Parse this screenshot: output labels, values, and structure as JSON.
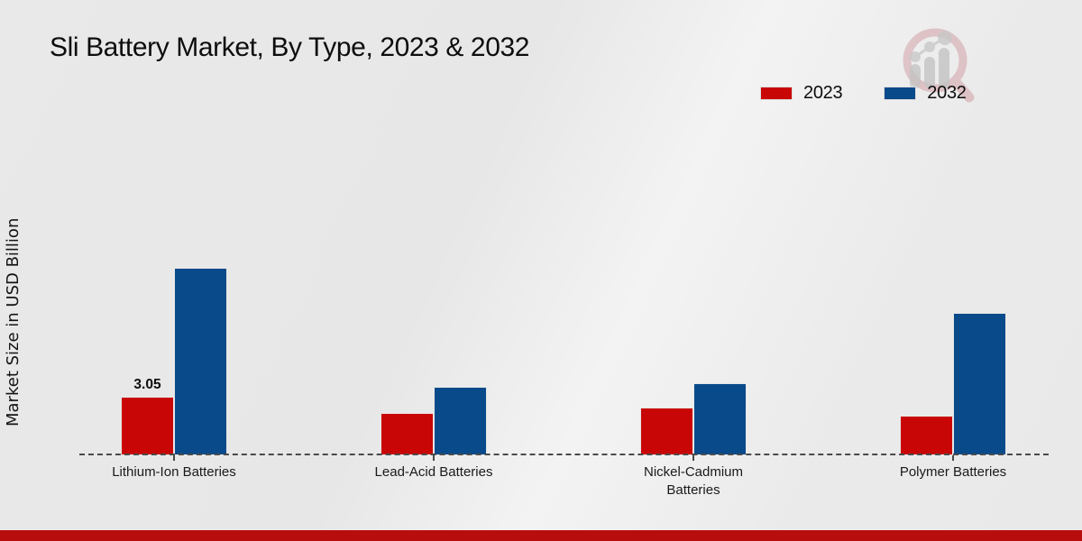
{
  "chart_data": {
    "type": "bar",
    "title": "Sli Battery Market, By Type, 2023 & 2032",
    "ylabel": "Market Size in USD Billion",
    "xlabel": "",
    "categories": [
      "Lithium-Ion Batteries",
      "Lead-Acid Batteries",
      "Nickel-Cadmium Batteries",
      "Polymer Batteries"
    ],
    "series": [
      {
        "name": "2023",
        "color": "#c90606",
        "values": [
          3.05,
          2.2,
          2.5,
          2.05
        ],
        "data_labels": [
          "3.05",
          "",
          "",
          ""
        ]
      },
      {
        "name": "2032",
        "color": "#094a8b",
        "values": [
          9.75,
          3.55,
          3.75,
          7.4
        ],
        "data_labels": [
          "",
          "",
          "",
          ""
        ]
      }
    ],
    "ylim": [
      0,
      10.5
    ],
    "grid": false,
    "legend_position": "top-right",
    "baseline_style": "dashed"
  },
  "legend": [
    {
      "label": "2023",
      "color": "#c90606"
    },
    {
      "label": "2032",
      "color": "#094a8b"
    }
  ],
  "footer": {
    "color": "#b80d0d"
  },
  "icons": {
    "brand_logo": "magnifier-bar-chart-watermark"
  }
}
